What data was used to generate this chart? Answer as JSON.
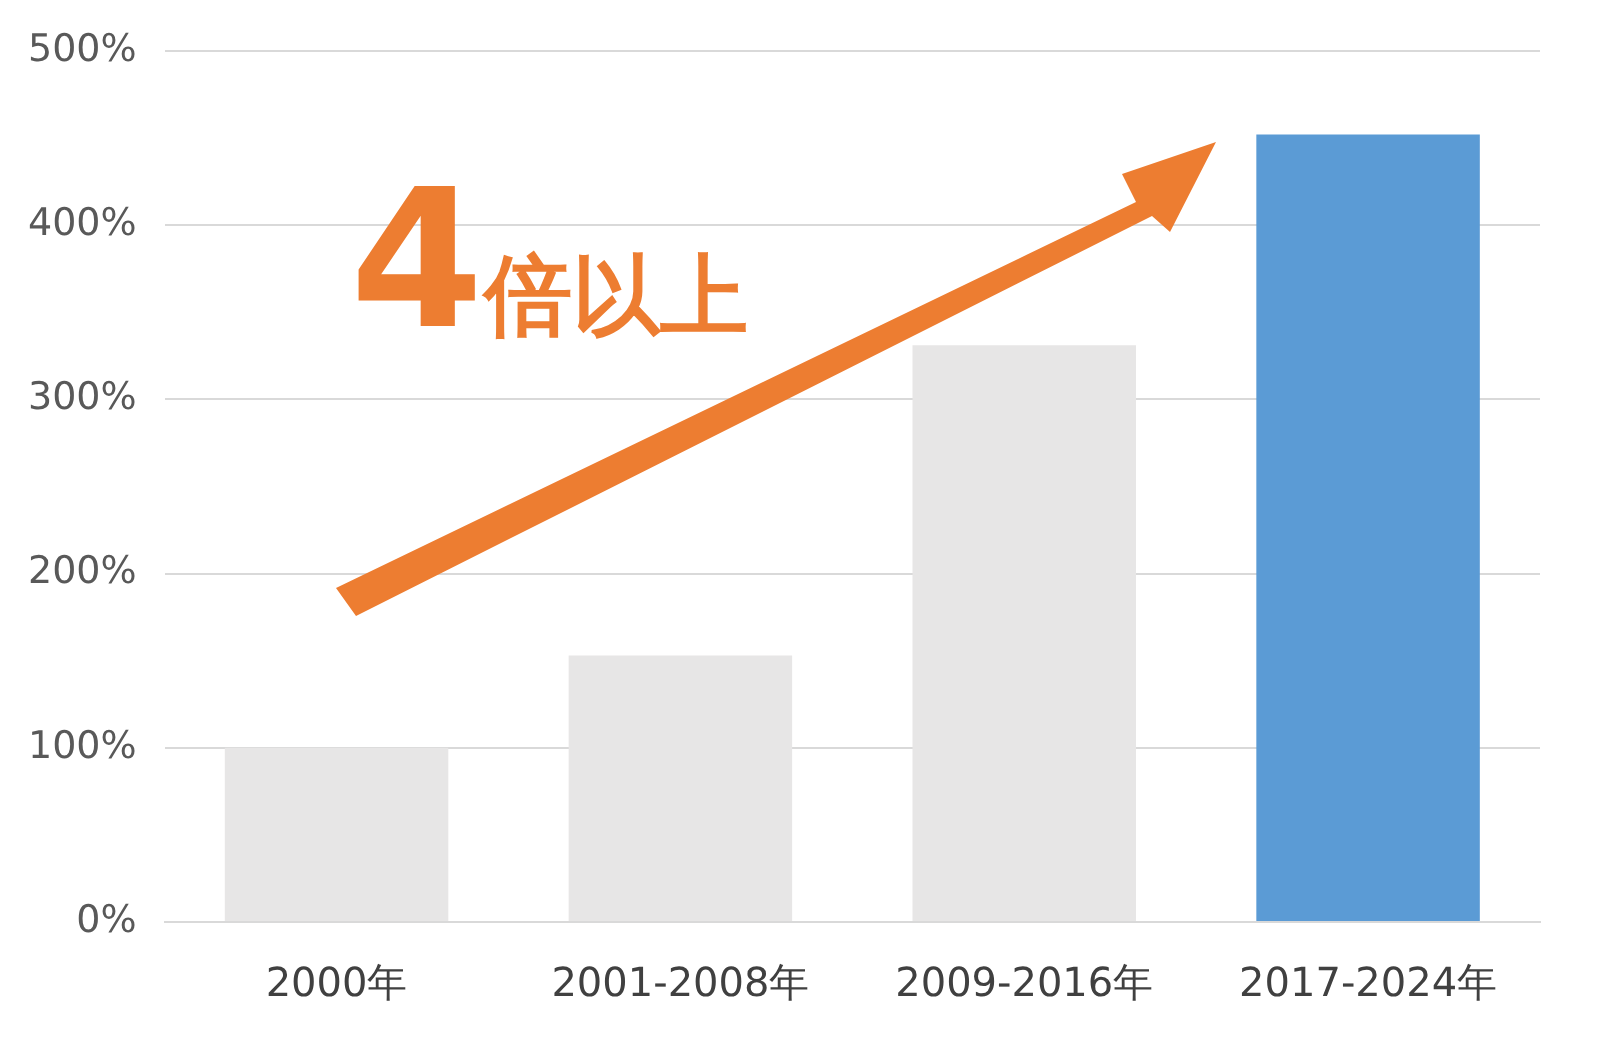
{
  "chart_data": {
    "type": "bar",
    "categories": [
      "2000年",
      "2001-2008年",
      "2009-2016年",
      "2017-2024年"
    ],
    "values": [
      100,
      153,
      331,
      452
    ],
    "colors": [
      "#e7e6e6",
      "#e7e6e6",
      "#e7e6e6",
      "#5b9bd5"
    ],
    "ylim": [
      0,
      500
    ],
    "yticks": [
      {
        "value": 0,
        "label": "0%"
      },
      {
        "value": 100,
        "label": "100%"
      },
      {
        "value": 200,
        "label": "200%"
      },
      {
        "value": 300,
        "label": "300%"
      },
      {
        "value": 400,
        "label": "400%"
      },
      {
        "value": 500,
        "label": "500%"
      }
    ],
    "grid": "y",
    "legend": false,
    "annotations": [
      "4倍以上"
    ]
  }
}
